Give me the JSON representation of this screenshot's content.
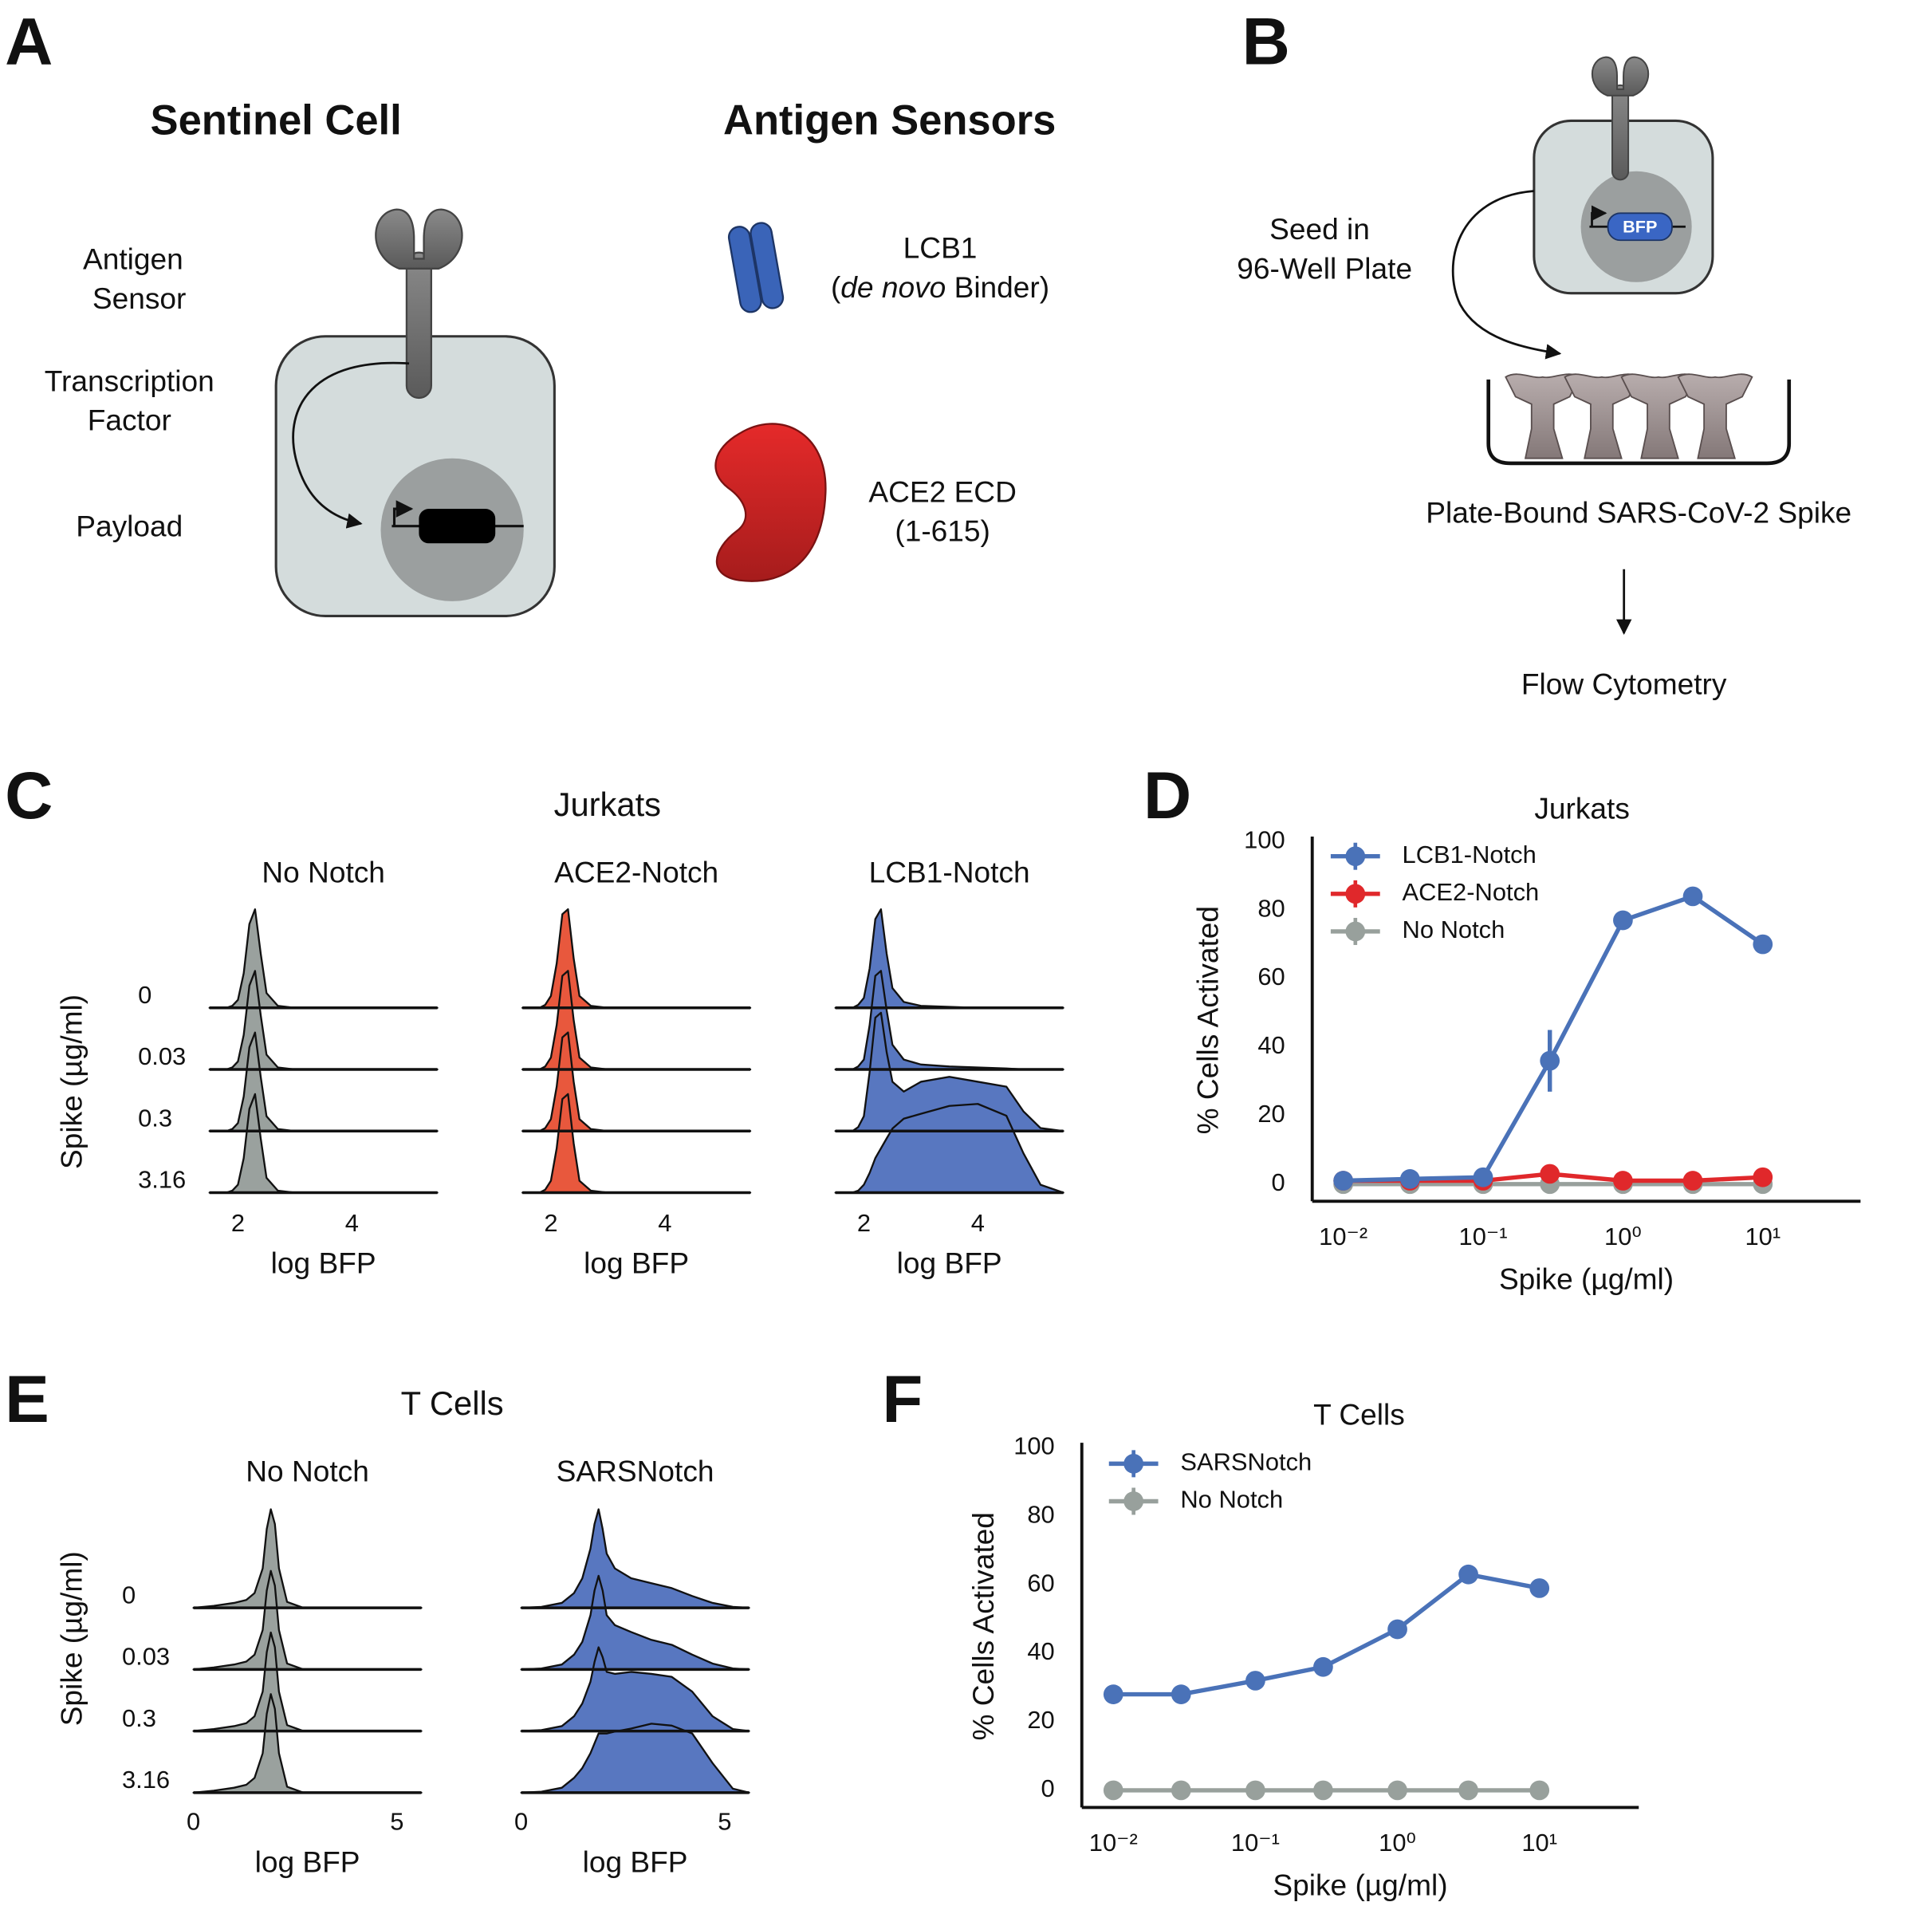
{
  "figure": {
    "panel_labels": [
      "A",
      "B",
      "C",
      "D",
      "E",
      "F"
    ],
    "sentinel_cell": {
      "title": "Sentinel Cell",
      "labels": [
        "Antigen",
        "Sensor",
        "Transcription",
        "Factor",
        "Payload"
      ]
    },
    "antigen_sensors": {
      "title": "Antigen Sensors",
      "lcb1": {
        "name": "LCB1",
        "open": "(",
        "italic": "de novo",
        "close": " Binder)"
      },
      "ace2": {
        "name": "ACE2 ECD",
        "range": "(1-615)"
      }
    },
    "workflow": {
      "seed": [
        "Seed in",
        "96-Well Plate"
      ],
      "reporter": "BFP",
      "plate": "Plate-Bound SARS-CoV-2 Spike",
      "readout": "Flow Cytometry"
    }
  },
  "chart_data": [
    {
      "type": "ridgeline",
      "title": "Jurkats",
      "ylabel": "Spike (µg/ml)",
      "xlabel": "log BFP",
      "row_labels": [
        "0",
        "0.03",
        "0.3",
        "3.16"
      ],
      "x": [
        1.5,
        1.8,
        1.9,
        2.0,
        2.1,
        2.2,
        2.3,
        2.4,
        2.5,
        2.7,
        3.0,
        3.5,
        4.0,
        4.5,
        4.8,
        5.1,
        5.5
      ],
      "xlim": [
        1.5,
        5.5
      ],
      "xticks": [
        2,
        4
      ],
      "panels": [
        {
          "name": "No Notch",
          "color": "#9aa19e",
          "rows": [
            [
              0,
              0,
              0.02,
              0.08,
              0.35,
              0.85,
              1,
              0.55,
              0.15,
              0.02,
              0,
              0,
              0,
              0,
              0,
              0,
              0
            ],
            [
              0,
              0,
              0.02,
              0.08,
              0.35,
              0.85,
              1,
              0.55,
              0.15,
              0.02,
              0,
              0,
              0,
              0,
              0,
              0,
              0
            ],
            [
              0,
              0,
              0.02,
              0.08,
              0.35,
              0.85,
              1,
              0.55,
              0.15,
              0.02,
              0,
              0,
              0,
              0,
              0,
              0,
              0
            ],
            [
              0,
              0,
              0.02,
              0.08,
              0.35,
              0.85,
              1,
              0.55,
              0.15,
              0.02,
              0,
              0,
              0,
              0,
              0,
              0,
              0
            ]
          ]
        },
        {
          "name": "ACE2-Notch",
          "color": "#e8583d",
          "rows": [
            [
              0,
              0,
              0.03,
              0.12,
              0.45,
              0.95,
              1,
              0.5,
              0.12,
              0.02,
              0,
              0,
              0,
              0,
              0,
              0,
              0
            ],
            [
              0,
              0,
              0.03,
              0.12,
              0.45,
              0.95,
              1,
              0.5,
              0.12,
              0.02,
              0,
              0,
              0,
              0,
              0,
              0,
              0
            ],
            [
              0,
              0,
              0.03,
              0.12,
              0.45,
              0.95,
              1,
              0.5,
              0.12,
              0.02,
              0,
              0,
              0,
              0,
              0,
              0,
              0
            ],
            [
              0,
              0,
              0.03,
              0.12,
              0.45,
              0.95,
              1,
              0.5,
              0.12,
              0.02,
              0,
              0,
              0,
              0,
              0,
              0,
              0
            ]
          ]
        },
        {
          "name": "LCB1-Notch",
          "color": "#5877c0",
          "rows": [
            [
              0,
              0,
              0.03,
              0.1,
              0.4,
              0.9,
              1,
              0.55,
              0.2,
              0.06,
              0.02,
              0.01,
              0,
              0,
              0,
              0,
              0
            ],
            [
              0,
              0,
              0.03,
              0.1,
              0.45,
              0.95,
              1,
              0.6,
              0.25,
              0.1,
              0.05,
              0.03,
              0.02,
              0.01,
              0,
              0,
              0
            ],
            [
              0,
              0,
              0.04,
              0.15,
              0.6,
              1.15,
              1.2,
              0.8,
              0.5,
              0.4,
              0.5,
              0.55,
              0.5,
              0.45,
              0.2,
              0.03,
              0
            ],
            [
              0,
              0,
              0.02,
              0.08,
              0.2,
              0.35,
              0.45,
              0.55,
              0.65,
              0.75,
              0.8,
              0.88,
              0.9,
              0.78,
              0.4,
              0.08,
              0
            ]
          ]
        }
      ]
    },
    {
      "type": "line",
      "title": "Jurkats",
      "xlabel": "Spike (µg/ml)",
      "ylabel": "% Cells Activated",
      "x": [
        0.01,
        0.03,
        0.1,
        0.3,
        1,
        3.16,
        10
      ],
      "log_x": true,
      "xlim": [
        0.006,
        50
      ],
      "ylim": [
        -5,
        100
      ],
      "xticks": [
        {
          "value": 0.01,
          "label": "10⁻²"
        },
        {
          "value": 0.1,
          "label": "10⁻¹"
        },
        {
          "value": 1,
          "label": "10⁰"
        },
        {
          "value": 10,
          "label": "10¹"
        }
      ],
      "yticks": [
        0,
        20,
        40,
        60,
        80,
        100
      ],
      "legend": "upper left",
      "series": [
        {
          "name": "LCB1-Notch",
          "color": "#4a72b8",
          "values": [
            1,
            1.5,
            2,
            36,
            77,
            84,
            70
          ],
          "errors": [
            null,
            null,
            null,
            9,
            null,
            null,
            null
          ]
        },
        {
          "name": "ACE2-Notch",
          "color": "#e0282b",
          "values": [
            1,
            1,
            1,
            3,
            1,
            1,
            2
          ]
        },
        {
          "name": "No Notch",
          "color": "#98a09c",
          "values": [
            0,
            0,
            0,
            0,
            0,
            0,
            0
          ]
        }
      ]
    },
    {
      "type": "ridgeline",
      "title": "T Cells",
      "ylabel": "Spike (µg/ml)",
      "xlabel": "log BFP",
      "row_labels": [
        "0",
        "0.03",
        "0.3",
        "3.16"
      ],
      "x": [
        0,
        0.5,
        1.0,
        1.3,
        1.5,
        1.7,
        1.8,
        1.9,
        2.0,
        2.1,
        2.3,
        2.7,
        3.2,
        3.7,
        4.2,
        4.7,
        5.2,
        5.6
      ],
      "xlim": [
        0,
        5.6
      ],
      "xticks": [
        0,
        5
      ],
      "panels": [
        {
          "name": "No Notch",
          "color": "#9aa19e",
          "rows": [
            [
              0,
              0.02,
              0.05,
              0.08,
              0.15,
              0.4,
              0.8,
              1,
              0.85,
              0.4,
              0.06,
              0,
              0,
              0,
              0,
              0,
              0,
              0
            ],
            [
              0,
              0.02,
              0.05,
              0.08,
              0.15,
              0.4,
              0.8,
              1,
              0.85,
              0.4,
              0.06,
              0,
              0,
              0,
              0,
              0,
              0,
              0
            ],
            [
              0,
              0.02,
              0.05,
              0.08,
              0.15,
              0.4,
              0.8,
              1,
              0.85,
              0.4,
              0.06,
              0,
              0,
              0,
              0,
              0,
              0,
              0
            ],
            [
              0,
              0.02,
              0.05,
              0.08,
              0.15,
              0.4,
              0.8,
              1,
              0.85,
              0.4,
              0.06,
              0,
              0,
              0,
              0,
              0,
              0,
              0
            ]
          ]
        },
        {
          "name": "SARSNotch",
          "color": "#5877c0",
          "rows": [
            [
              0,
              0.01,
              0.05,
              0.15,
              0.3,
              0.6,
              0.85,
              1,
              0.8,
              0.55,
              0.4,
              0.3,
              0.25,
              0.2,
              0.12,
              0.05,
              0.01,
              0
            ],
            [
              0,
              0.01,
              0.05,
              0.15,
              0.28,
              0.55,
              0.8,
              0.95,
              0.8,
              0.55,
              0.45,
              0.38,
              0.3,
              0.25,
              0.15,
              0.06,
              0.01,
              0
            ],
            [
              0,
              0.01,
              0.05,
              0.15,
              0.28,
              0.5,
              0.7,
              0.85,
              0.75,
              0.6,
              0.58,
              0.6,
              0.58,
              0.55,
              0.4,
              0.15,
              0.02,
              0
            ],
            [
              0,
              0.01,
              0.05,
              0.15,
              0.25,
              0.4,
              0.5,
              0.6,
              0.6,
              0.6,
              0.62,
              0.65,
              0.7,
              0.68,
              0.6,
              0.3,
              0.04,
              0
            ]
          ]
        }
      ]
    },
    {
      "type": "line",
      "title": "T Cells",
      "xlabel": "Spike (µg/ml)",
      "ylabel": "% Cells Activated",
      "x": [
        0.01,
        0.03,
        0.1,
        0.3,
        1,
        3.16,
        10
      ],
      "log_x": true,
      "xlim": [
        0.006,
        50
      ],
      "ylim": [
        -5,
        100
      ],
      "xticks": [
        {
          "value": 0.01,
          "label": "10⁻²"
        },
        {
          "value": 0.1,
          "label": "10⁻¹"
        },
        {
          "value": 1,
          "label": "10⁰"
        },
        {
          "value": 10,
          "label": "10¹"
        }
      ],
      "yticks": [
        0,
        20,
        40,
        60,
        80,
        100
      ],
      "legend": "upper left",
      "series": [
        {
          "name": "SARSNotch",
          "color": "#4a72b8",
          "values": [
            28,
            28,
            32,
            36,
            47,
            63,
            59
          ]
        },
        {
          "name": "No Notch",
          "color": "#98a09c",
          "values": [
            0,
            0,
            0,
            0,
            0,
            0,
            0
          ]
        }
      ]
    }
  ]
}
